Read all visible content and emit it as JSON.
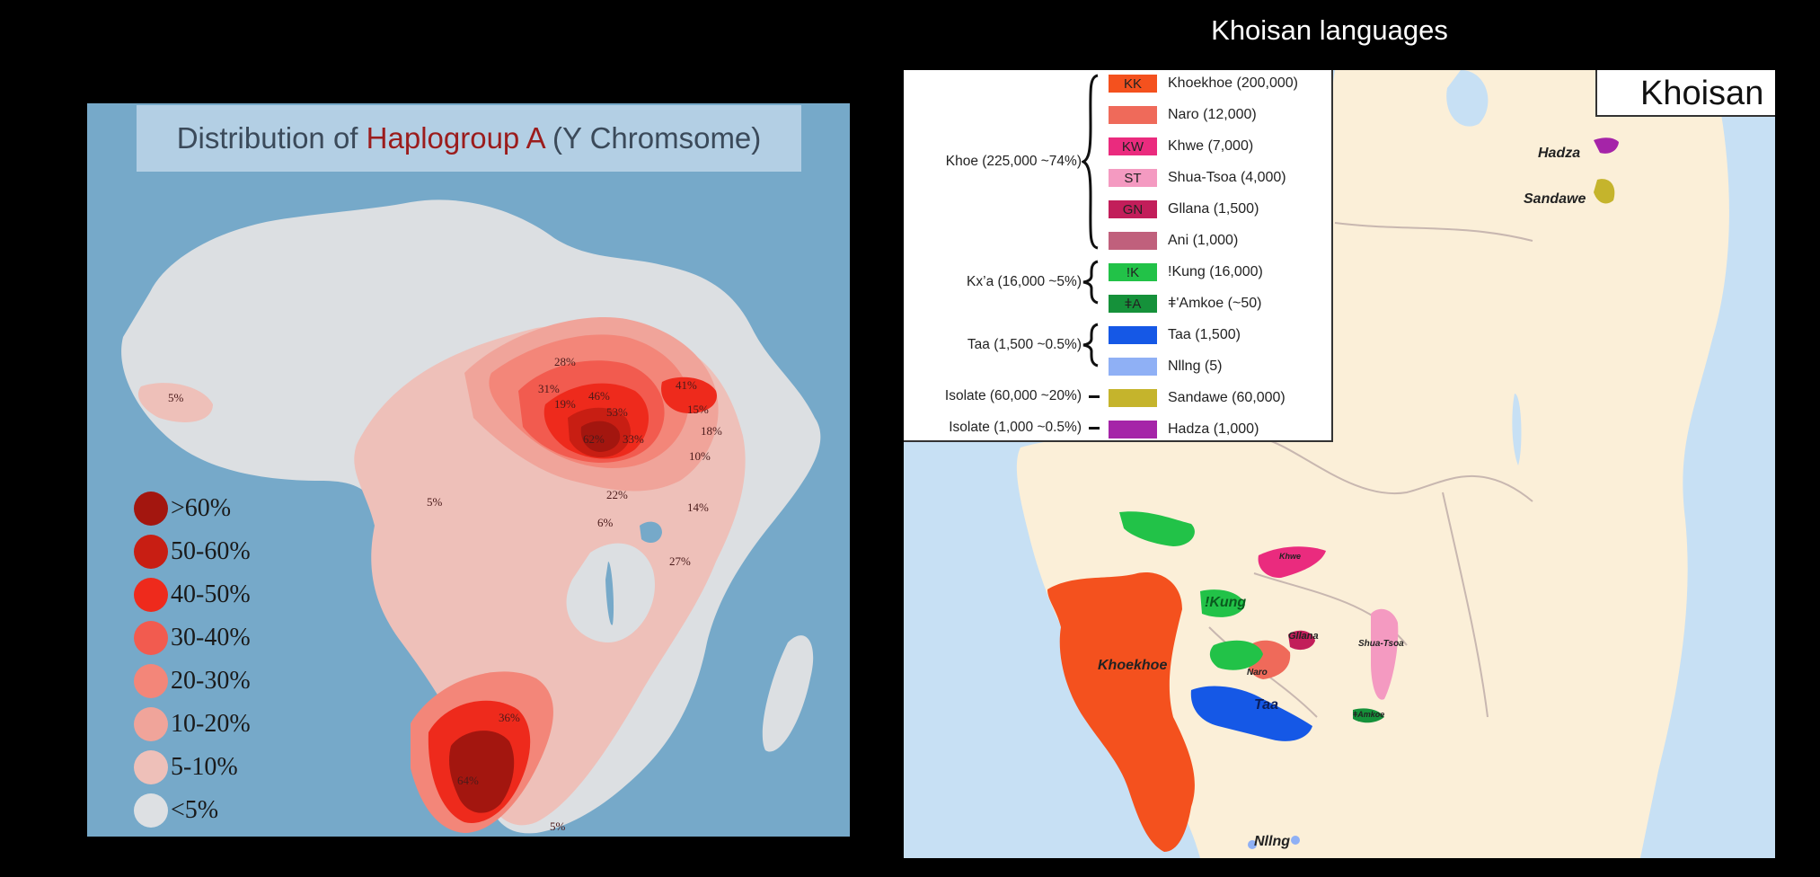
{
  "right_title": "Khoisan languages",
  "left_map": {
    "title_prefix": "Distribution of ",
    "title_highlight": "Haplogroup A",
    "title_suffix": " (Y Chromsome)",
    "percent_labels": [
      "5%",
      "28%",
      "31%",
      "19%",
      "46%",
      "53%",
      "41%",
      "15%",
      "18%",
      "62%",
      "33%",
      "10%",
      "5%",
      "22%",
      "6%",
      "14%",
      "27%",
      "36%",
      "64%",
      "5%"
    ],
    "legend": [
      {
        "label": ">60%",
        "color": "#a3160f"
      },
      {
        "label": "50-60%",
        "color": "#c81e13"
      },
      {
        "label": "40-50%",
        "color": "#ee2a1c"
      },
      {
        "label": "30-40%",
        "color": "#f25b4f"
      },
      {
        "label": "20-30%",
        "color": "#f38679"
      },
      {
        "label": "10-20%",
        "color": "#f0a49a"
      },
      {
        "label": "5-10%",
        "color": "#eec0b9"
      },
      {
        "label": "<5%",
        "color": "#dde0e3"
      }
    ]
  },
  "right_map": {
    "corner_title": "Khoisan",
    "groups": [
      {
        "label": "Khoe (225,000  ~74%)"
      },
      {
        "label": "Kx’a (16,000  ~5%)"
      },
      {
        "label": "Taa (1,500  ~0.5%)"
      },
      {
        "label": "Isolate (60,000  ~20%)"
      },
      {
        "label": "Isolate (1,000 ~0.5%)"
      }
    ],
    "legend": [
      {
        "code": "KK",
        "label": "Khoekhoe (200,000)",
        "color": "#f4511e"
      },
      {
        "code": "",
        "label": "Naro (12,000)",
        "color": "#ef6a5a"
      },
      {
        "code": "KW",
        "label": "Khwe (7,000)",
        "color": "#ea2b7e"
      },
      {
        "code": "ST",
        "label": "Shua-Tsoa (4,000)",
        "color": "#f49ac1"
      },
      {
        "code": "GN",
        "label": "Gllana (1,500)",
        "color": "#c21e5a"
      },
      {
        "code": "",
        "label": "Ani (1,000)",
        "color": "#c0607c"
      },
      {
        "code": "!K",
        "label": "!Kung (16,000)",
        "color": "#22c248"
      },
      {
        "code": "ǂA",
        "label": "ǂ'Amkoe (~50)",
        "color": "#15913a"
      },
      {
        "code": "",
        "label": "Taa (1,500)",
        "color": "#1558e6"
      },
      {
        "code": "",
        "label": "Nllng (5)",
        "color": "#8fb0f5"
      },
      {
        "code": "",
        "label": "Sandawe (60,000)",
        "color": "#c5b42c"
      },
      {
        "code": "",
        "label": "Hadza (1,000)",
        "color": "#a524a8"
      }
    ],
    "map_labels": {
      "hadza": "Hadza",
      "sandawe": "Sandawe",
      "kung": "!Kung",
      "khoekhoe": "Khoekhoe",
      "taa": "Taa",
      "naro": "Naro",
      "gllana": "Gllana",
      "shua_tsoa": "Shua-Tsoa",
      "khwe": "Khwe",
      "amkoe": "ǂAmkoe",
      "nlng": "Nllng"
    }
  }
}
